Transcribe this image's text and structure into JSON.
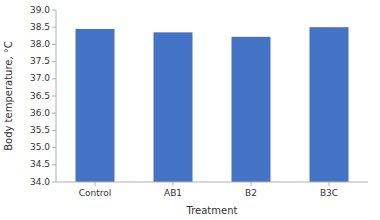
{
  "chart_data": {
    "type": "bar",
    "categories": [
      "Control",
      "AB1",
      "B2",
      "B3C"
    ],
    "values": [
      38.45,
      38.35,
      38.22,
      38.5
    ],
    "color": "#4472c4",
    "xlabel": "Treatment",
    "ylabel": "Body temperature, °C",
    "ylim": [
      34.0,
      39.0
    ],
    "yticks": [
      {
        "value": 34.0,
        "label": "34.0"
      },
      34.5,
      {
        "value": 35.0,
        "label": "35.0"
      },
      35.5,
      {
        "value": 36.0,
        "label": "36.0"
      },
      36.5,
      {
        "value": 37.0,
        "label": "37.0"
      },
      37.5,
      {
        "value": 38.0,
        "label": "38.0"
      },
      38.5,
      {
        "value": 39.0,
        "label": "39.0"
      }
    ],
    "grid": false
  }
}
